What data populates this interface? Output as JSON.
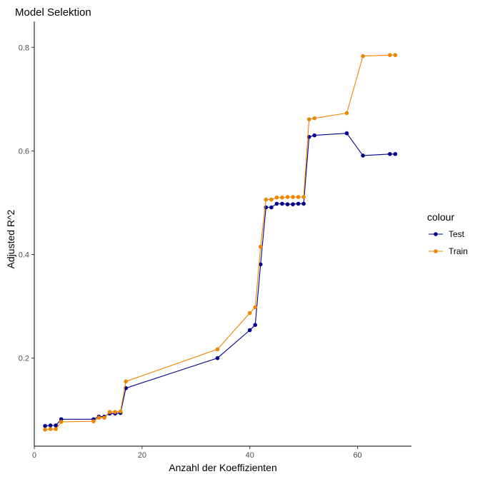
{
  "chart_data": {
    "type": "line",
    "title": "Model Selektion",
    "xlabel": "Anzahl der Koeffizienten",
    "ylabel": "Adjusted R^2",
    "xlim": [
      0,
      70
    ],
    "ylim": [
      0.03,
      0.85
    ],
    "xticks": [
      0,
      20,
      40,
      60
    ],
    "yticks": [
      0.2,
      0.4,
      0.6,
      0.8
    ],
    "grid": false,
    "legend": {
      "title": "colour",
      "position": "right"
    },
    "series": [
      {
        "name": "Test",
        "color": "#00008b",
        "points": [
          [
            2,
            0.069
          ],
          [
            3,
            0.07
          ],
          [
            4,
            0.07
          ],
          [
            5,
            0.082
          ],
          [
            11,
            0.082
          ],
          [
            12,
            0.087
          ],
          [
            13,
            0.087
          ],
          [
            14,
            0.093
          ],
          [
            15,
            0.093
          ],
          [
            16,
            0.094
          ],
          [
            17,
            0.142
          ],
          [
            34,
            0.2
          ],
          [
            40,
            0.254
          ],
          [
            41,
            0.264
          ],
          [
            42,
            0.381
          ],
          [
            43,
            0.491
          ],
          [
            44,
            0.491
          ],
          [
            45,
            0.498
          ],
          [
            46,
            0.498
          ],
          [
            47,
            0.497
          ],
          [
            48,
            0.497
          ],
          [
            49,
            0.498
          ],
          [
            50,
            0.498
          ],
          [
            51,
            0.627
          ],
          [
            52,
            0.63
          ],
          [
            58,
            0.634
          ],
          [
            61,
            0.591
          ],
          [
            66,
            0.594
          ],
          [
            67,
            0.594
          ]
        ]
      },
      {
        "name": "Train",
        "color": "#ee8500",
        "points": [
          [
            2,
            0.062
          ],
          [
            3,
            0.063
          ],
          [
            4,
            0.063
          ],
          [
            5,
            0.077
          ],
          [
            11,
            0.078
          ],
          [
            12,
            0.085
          ],
          [
            13,
            0.085
          ],
          [
            14,
            0.096
          ],
          [
            15,
            0.096
          ],
          [
            16,
            0.097
          ],
          [
            17,
            0.155
          ],
          [
            34,
            0.217
          ],
          [
            40,
            0.287
          ],
          [
            41,
            0.298
          ],
          [
            42,
            0.415
          ],
          [
            43,
            0.506
          ],
          [
            44,
            0.506
          ],
          [
            45,
            0.51
          ],
          [
            46,
            0.51
          ],
          [
            47,
            0.511
          ],
          [
            48,
            0.511
          ],
          [
            49,
            0.511
          ],
          [
            50,
            0.511
          ],
          [
            51,
            0.661
          ],
          [
            52,
            0.663
          ],
          [
            58,
            0.673
          ],
          [
            61,
            0.783
          ],
          [
            66,
            0.785
          ],
          [
            67,
            0.785
          ]
        ]
      }
    ]
  }
}
